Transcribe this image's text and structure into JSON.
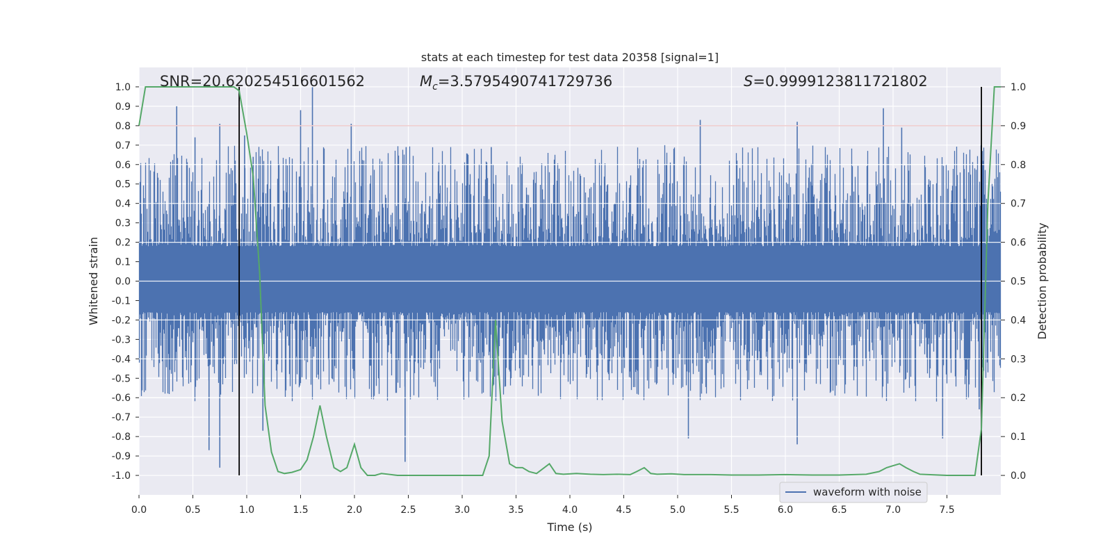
{
  "chart_data": {
    "type": "line",
    "title": "stats at each timestep for test data 20358 [signal=1]",
    "xlabel": "Time (s)",
    "ylabel_left": "Whitened strain",
    "ylabel_right": "Detection probability",
    "xlim": [
      0,
      8
    ],
    "ylim_left": [
      -1.1,
      1.1
    ],
    "ylim_right": [
      -0.05,
      1.05
    ],
    "x_ticks": [
      "0.0",
      "0.5",
      "1.0",
      "1.5",
      "2.0",
      "2.5",
      "3.0",
      "3.5",
      "4.0",
      "4.5",
      "5.0",
      "5.5",
      "6.0",
      "6.5",
      "7.0",
      "7.5"
    ],
    "y_ticks_left": [
      "-1.0",
      "-0.9",
      "-0.8",
      "-0.7",
      "-0.6",
      "-0.5",
      "-0.4",
      "-0.3",
      "-0.2",
      "-0.1",
      "0.0",
      "0.1",
      "0.2",
      "0.3",
      "0.4",
      "0.5",
      "0.6",
      "0.7",
      "0.8",
      "0.9",
      "1.0"
    ],
    "y_ticks_right": [
      "0.0",
      "0.1",
      "0.2",
      "0.3",
      "0.4",
      "0.5",
      "0.6",
      "0.7",
      "0.8",
      "0.9",
      "1.0"
    ],
    "annotations": {
      "snr": "SNR=20.620254516601562",
      "mc_symbol": "M",
      "mc_sub": "c",
      "mc_value": "=3.5795490741729736",
      "s_symbol": "S",
      "s_value": "=0.9999123811721802"
    },
    "legend": {
      "label": "waveform with noise",
      "position": "lower-right"
    },
    "threshold_line": {
      "value_right_axis": 0.9,
      "color": "#c44e52"
    },
    "vertical_markers": [
      0.93,
      7.82
    ],
    "waveform": {
      "name": "waveform with noise",
      "color": "#4c72b0",
      "envelope": {
        "typical_max": 0.45,
        "typical_min": -0.4
      },
      "spikes": [
        [
          0.35,
          0.9
        ],
        [
          0.52,
          0.74
        ],
        [
          0.65,
          -0.87
        ],
        [
          0.75,
          0.81
        ],
        [
          0.75,
          -0.96
        ],
        [
          0.98,
          0.75
        ],
        [
          1.06,
          0.64
        ],
        [
          1.15,
          -0.77
        ],
        [
          1.5,
          0.88
        ],
        [
          1.61,
          1.0
        ],
        [
          1.97,
          0.81
        ],
        [
          2.47,
          -0.93
        ],
        [
          2.48,
          0.69
        ],
        [
          3.27,
          0.69
        ],
        [
          5.21,
          0.83
        ],
        [
          5.1,
          -0.81
        ],
        [
          6.11,
          0.82
        ],
        [
          6.11,
          -0.84
        ],
        [
          6.91,
          0.89
        ],
        [
          7.08,
          0.79
        ],
        [
          7.46,
          -0.81
        ],
        [
          7.8,
          -0.66
        ]
      ]
    },
    "detection_probability": {
      "color": "#55a868",
      "x": [
        0,
        0.06,
        0.12,
        0.2,
        0.5,
        0.8,
        0.88,
        0.93,
        1.0,
        1.06,
        1.12,
        1.17,
        1.23,
        1.29,
        1.35,
        1.42,
        1.5,
        1.56,
        1.62,
        1.68,
        1.74,
        1.81,
        1.87,
        1.93,
        2.0,
        2.06,
        2.12,
        2.19,
        2.25,
        2.4,
        2.6,
        2.8,
        3.0,
        3.1,
        3.19,
        3.25,
        3.31,
        3.37,
        3.44,
        3.5,
        3.56,
        3.62,
        3.69,
        3.81,
        3.87,
        3.94,
        4.06,
        4.19,
        4.31,
        4.44,
        4.56,
        4.62,
        4.69,
        4.75,
        4.81,
        4.94,
        5.06,
        5.19,
        5.31,
        5.5,
        5.75,
        6.0,
        6.25,
        6.5,
        6.75,
        6.87,
        6.94,
        7.0,
        7.06,
        7.12,
        7.19,
        7.25,
        7.5,
        7.69,
        7.76,
        7.82,
        7.88,
        7.94,
        8.0
      ],
      "y": [
        0.9,
        1.0,
        1.0,
        1.0,
        1.0,
        1.0,
        1.0,
        0.99,
        0.88,
        0.77,
        0.52,
        0.18,
        0.06,
        0.01,
        0.005,
        0.008,
        0.015,
        0.04,
        0.1,
        0.18,
        0.1,
        0.02,
        0.01,
        0.02,
        0.08,
        0.02,
        0.0,
        0.0,
        0.005,
        0.0,
        0.0,
        0.0,
        0.0,
        0.0,
        0.0,
        0.05,
        0.4,
        0.14,
        0.03,
        0.02,
        0.02,
        0.01,
        0.005,
        0.03,
        0.005,
        0.003,
        0.005,
        0.003,
        0.002,
        0.003,
        0.002,
        0.01,
        0.02,
        0.005,
        0.003,
        0.004,
        0.002,
        0.002,
        0.002,
        0.001,
        0.001,
        0.002,
        0.001,
        0.001,
        0.003,
        0.01,
        0.02,
        0.025,
        0.03,
        0.02,
        0.01,
        0.003,
        0.0,
        0.0,
        0.0,
        0.12,
        0.7,
        1.0,
        1.0
      ]
    }
  }
}
